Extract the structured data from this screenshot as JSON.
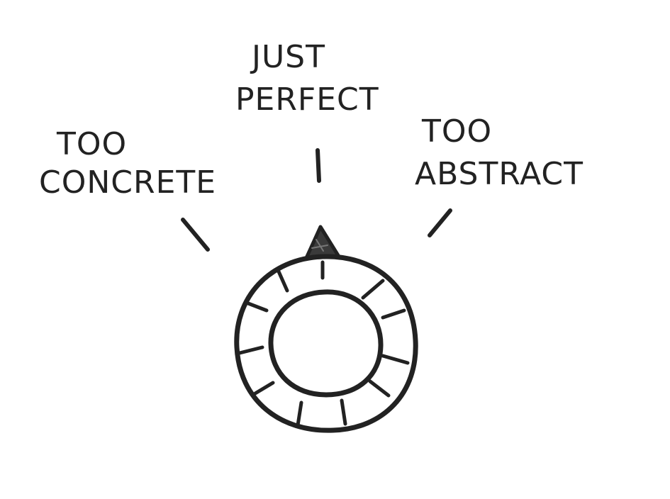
{
  "labels": {
    "left": {
      "line1": "TOO",
      "line2": "CONCRETE"
    },
    "center": {
      "line1": "JUST",
      "line2": "PERFECT"
    },
    "right": {
      "line1": "TOO",
      "line2": "ABSTRACT"
    }
  },
  "colors": {
    "ink": "#222222",
    "background": "#ffffff"
  }
}
